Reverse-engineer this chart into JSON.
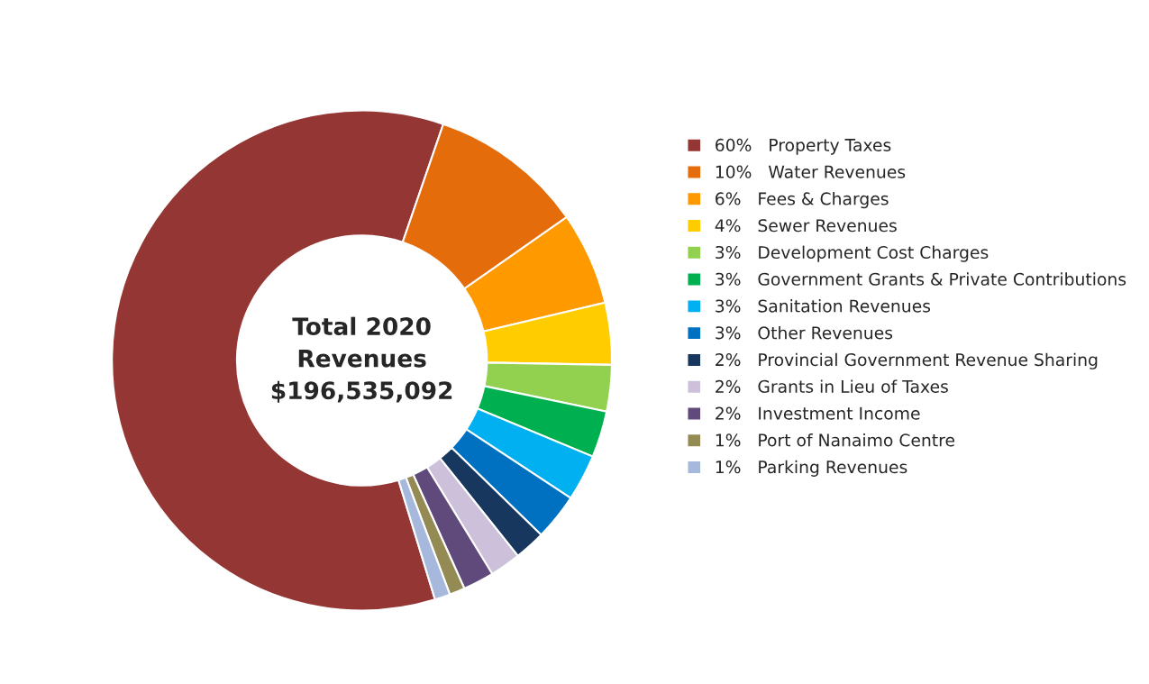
{
  "chart_data": {
    "type": "donut",
    "categories": [
      "Property Taxes",
      "Water Revenues",
      "Fees & Charges",
      "Sewer Revenues",
      "Development Cost Charges",
      "Government Grants & Private Contributions",
      "Sanitation Revenues",
      "Other Revenues",
      "Provincial Government Revenue Sharing",
      "Grants in Lieu of Taxes",
      "Investment Income",
      "Port of Nanaimo Centre",
      "Parking Revenues"
    ],
    "values": [
      60,
      10,
      6,
      4,
      3,
      3,
      3,
      3,
      2,
      2,
      2,
      1,
      1
    ],
    "value_labels": [
      "60%",
      "10%",
      "6%",
      "4%",
      "3%",
      "3%",
      "3%",
      "3%",
      "2%",
      "2%",
      "2%",
      "1%",
      "1%"
    ],
    "colors": [
      "#943634",
      "#e46c0a",
      "#ff9900",
      "#ffcc00",
      "#92d050",
      "#00b050",
      "#00b0f0",
      "#0070c0",
      "#17375e",
      "#ccc0da",
      "#604a7b",
      "#948a54",
      "#a6b9dc"
    ],
    "annotations": [
      "Total 2020\nRevenues\n$196,535,092"
    ],
    "legend": "right"
  }
}
